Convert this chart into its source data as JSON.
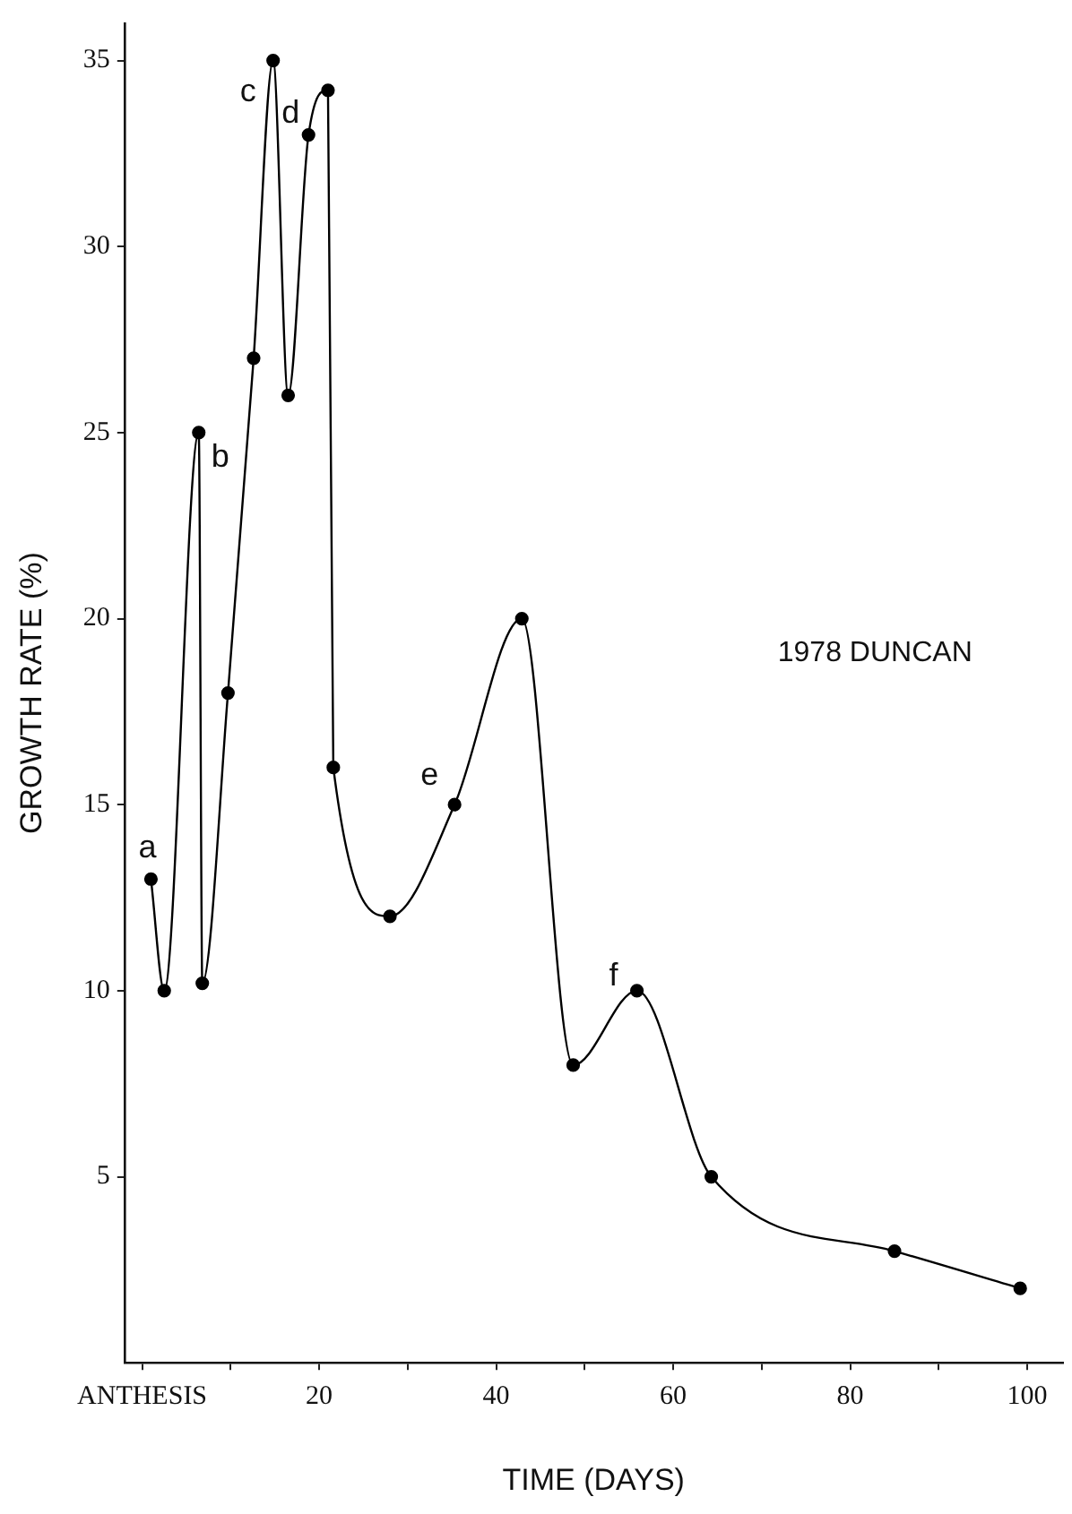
{
  "chart_data": {
    "type": "line",
    "xlabel": "TIME (DAYS)",
    "ylabel": "GROWTH RATE (%)",
    "x": [
      1.0,
      2.5,
      6.4,
      6.8,
      9.7,
      12.6,
      14.8,
      16.5,
      18.8,
      21.0,
      21.6,
      28.0,
      35.3,
      42.9,
      48.7,
      55.9,
      64.3,
      85.0,
      99.2
    ],
    "series": [
      {
        "color": "#000000",
        "values": [
          13,
          10,
          25,
          10.2,
          18,
          27,
          35,
          26,
          33,
          34.2,
          16,
          12,
          15,
          20,
          8,
          10,
          5,
          3,
          2
        ]
      }
    ],
    "xlim": [
      -2,
      104
    ],
    "xticks": [
      {
        "value": 0,
        "label": "ANTHESIS"
      },
      {
        "value": 10,
        "label": null
      },
      20,
      {
        "value": 30,
        "label": null
      },
      40,
      {
        "value": 50,
        "label": null
      },
      60,
      {
        "value": 70,
        "label": null
      },
      80,
      {
        "value": 90,
        "label": null
      },
      100
    ],
    "ylim": [
      0,
      36
    ],
    "yticks": [
      5,
      10,
      15,
      20,
      25,
      30,
      35
    ],
    "marker": "circle",
    "line_style": "solid",
    "grid": false,
    "legend": false,
    "annotations": [
      {
        "text": "a",
        "x": 1.0,
        "y": 13
      },
      {
        "text": "b",
        "x": 6.4,
        "y": 25
      },
      {
        "text": "c",
        "x": 14.8,
        "y": 35
      },
      {
        "text": "d",
        "x": 18.8,
        "y": 33
      },
      {
        "text": "e",
        "x": 35.3,
        "y": 15
      },
      {
        "text": "f",
        "x": 55.9,
        "y": 10
      },
      "1978 DUNCAN"
    ]
  }
}
